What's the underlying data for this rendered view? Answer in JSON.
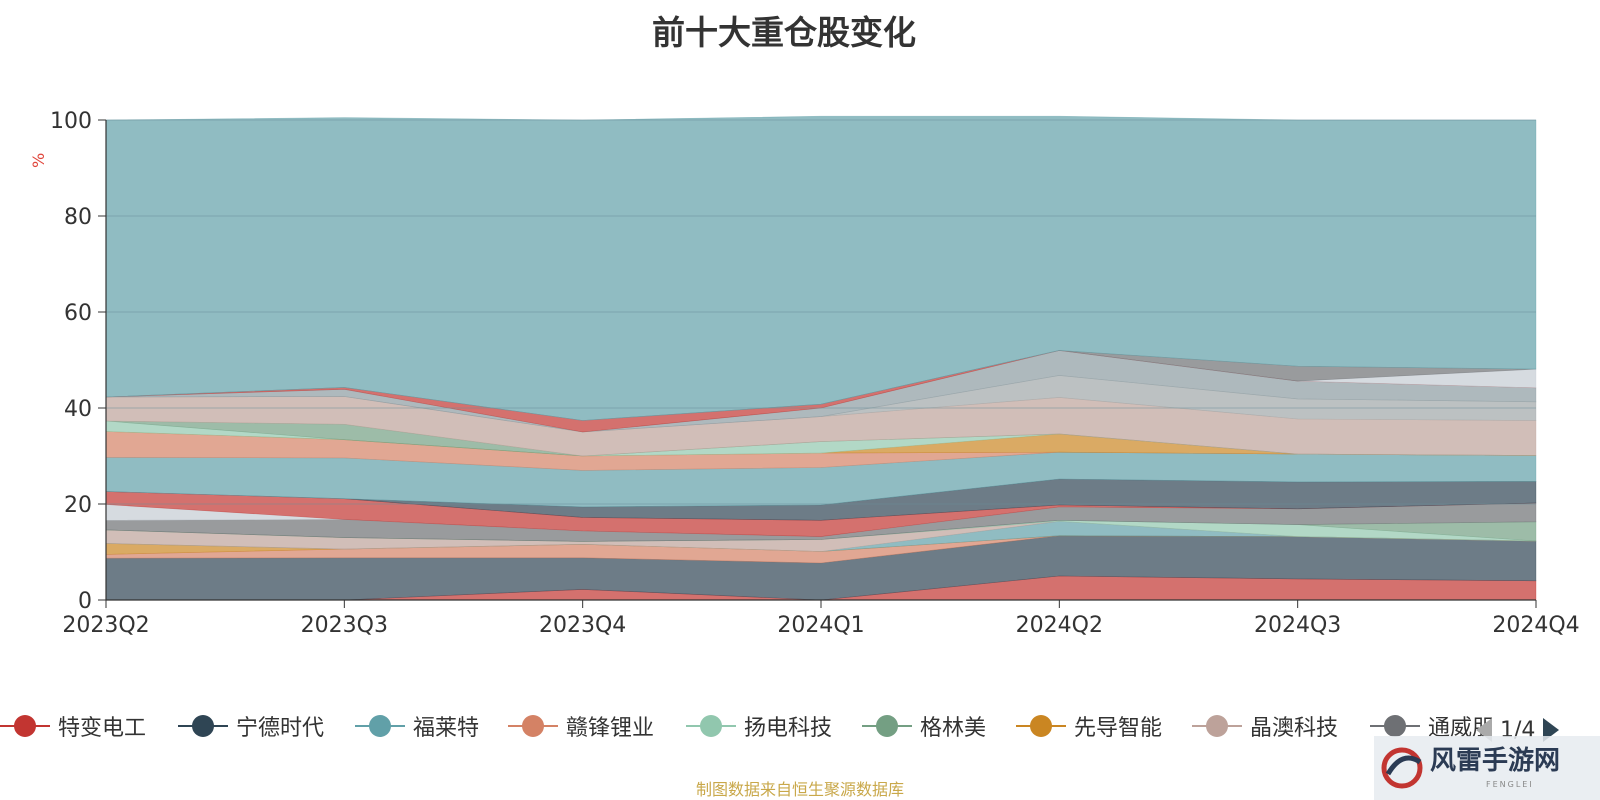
{
  "title": "前十大重仓股变化",
  "source_note": "制图数据来自恒生聚源数据库",
  "pager": {
    "text": "1/4"
  },
  "watermark": {
    "text": "风雷手游网",
    "sub": "FENGLEI"
  },
  "legend_visible": [
    {
      "name": "特变电工",
      "color": "#c23531"
    },
    {
      "name": "宁德时代",
      "color": "#2f4554"
    },
    {
      "name": "福莱特",
      "color": "#61a0a8"
    },
    {
      "name": "赣锋锂业",
      "color": "#d48265"
    },
    {
      "name": "扬电科技",
      "color": "#91c7ae"
    },
    {
      "name": "格林美",
      "color": "#749f83"
    },
    {
      "name": "先导智能",
      "color": "#ca8622"
    },
    {
      "name": "晶澳科技",
      "color": "#bda29a"
    },
    {
      "name": "通威股份",
      "color": "#6e7074",
      "display": "通威朋"
    }
  ],
  "chart_data": {
    "type": "area",
    "stacked": true,
    "title": "前十大重仓股变化",
    "ylabel": "%",
    "ylim": [
      0,
      100
    ],
    "yticks": [
      0,
      20,
      40,
      60,
      80,
      100
    ],
    "categories": [
      "2023Q2",
      "2023Q3",
      "2023Q4",
      "2024Q1",
      "2024Q2",
      "2024Q3",
      "2024Q4"
    ],
    "grid": true,
    "layers": [
      {
        "color": "#c23531",
        "values": [
          0,
          0,
          2.2,
          0,
          5.0,
          4.4,
          4.0
        ]
      },
      {
        "color": "#2f4554",
        "values": [
          8.7,
          8.8,
          6.6,
          7.7,
          8.4,
          8.8,
          8.3
        ]
      },
      {
        "color": "#d48265",
        "values": [
          0.8,
          1.8,
          2.8,
          2.4,
          0,
          0,
          0
        ]
      },
      {
        "color": "#ca8622",
        "values": [
          2.3,
          0,
          0,
          0,
          0,
          0,
          0
        ]
      },
      {
        "color": "#61a0a8",
        "values": [
          0,
          0,
          0,
          0,
          3.0,
          0,
          0
        ]
      },
      {
        "color": "#bda29a",
        "values": [
          2.8,
          2.4,
          0.6,
          2.5,
          0,
          0,
          0
        ]
      },
      {
        "color": "#91c7ae",
        "values": [
          0,
          0,
          0,
          0,
          0.2,
          2.5,
          0
        ]
      },
      {
        "color": "#749f83",
        "values": [
          0,
          0,
          0,
          0,
          0,
          0,
          4.0
        ]
      },
      {
        "color": "#6e7074",
        "values": [
          2.0,
          3.8,
          2.2,
          0.6,
          2.8,
          3.3,
          3.9
        ]
      },
      {
        "color": "#c4ccd3",
        "values": [
          3.3,
          0,
          0,
          0,
          0,
          0,
          0
        ]
      },
      {
        "color": "#c23531",
        "values": [
          2.7,
          4.3,
          2.8,
          3.4,
          0.4,
          0,
          0
        ]
      },
      {
        "color": "#2f4554",
        "values": [
          0,
          0,
          2.2,
          3.2,
          5.4,
          5.6,
          4.5
        ]
      },
      {
        "color": "#61a0a8",
        "values": [
          7.1,
          8.5,
          7.6,
          7.8,
          5.6,
          5.8,
          5.4
        ]
      },
      {
        "color": "#d48265",
        "values": [
          5.4,
          3.8,
          3.0,
          3.0,
          0,
          0,
          0
        ]
      },
      {
        "color": "#ca8622",
        "values": [
          0,
          0,
          0,
          0,
          3.8,
          0,
          0
        ]
      },
      {
        "color": "#91c7ae",
        "values": [
          2.2,
          0,
          0,
          2.4,
          0,
          0,
          0
        ]
      },
      {
        "color": "#749f83",
        "values": [
          0,
          3.2,
          0,
          0,
          0,
          0,
          0
        ]
      },
      {
        "color": "#bda29a",
        "values": [
          5.0,
          5.8,
          5.0,
          5.2,
          7.6,
          7.3,
          7.3
        ]
      },
      {
        "color": "#a0a7a8",
        "values": [
          0,
          0,
          0,
          0,
          4.6,
          4.2,
          3.9
        ]
      },
      {
        "color": "#8c9ba1",
        "values": [
          0,
          1.5,
          0,
          1.8,
          5.2,
          3.7,
          2.9
        ]
      },
      {
        "color": "#c23531",
        "values": [
          0,
          0.4,
          2.4,
          0.8,
          0,
          0,
          0
        ]
      },
      {
        "color": "#c4ccd3",
        "values": [
          0,
          0,
          0,
          0,
          0,
          0,
          3.9
        ]
      },
      {
        "color": "#6e7074",
        "values": [
          0,
          0,
          0,
          0,
          0,
          3.1,
          0
        ]
      },
      {
        "color": "#61a0a8",
        "values": [
          57.7,
          56.2,
          62.6,
          60.0,
          48.8,
          51.3,
          51.9
        ]
      }
    ]
  }
}
